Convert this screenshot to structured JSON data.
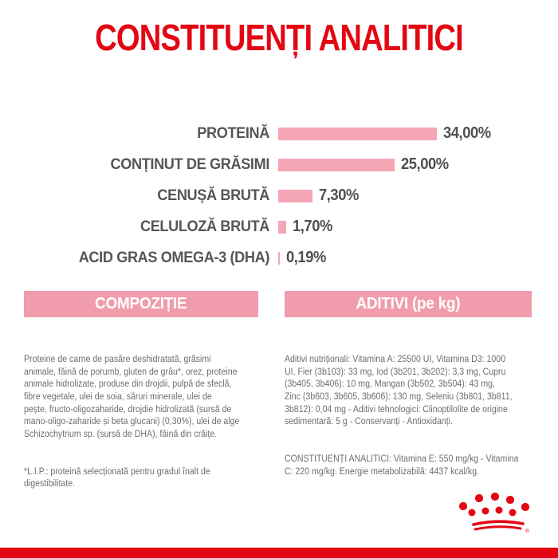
{
  "colors": {
    "brand_red": "#e30613",
    "bar_pink": "#f4a6b5",
    "header_pink": "#f19cac",
    "chart_label_gray": "#55565a",
    "body_text_gray": "#6d6e71",
    "background": "#ffffff"
  },
  "title": "CONSTITUENȚI ANALITICI",
  "chart_data": {
    "type": "bar",
    "orientation": "horizontal",
    "title": "CONSTITUENȚI ANALITICI",
    "categories": [
      "PROTEINĂ",
      "CONȚINUT DE GRĂSIMI",
      "CENUȘĂ BRUTĂ",
      "CELULOZĂ BRUTĂ",
      "ACID GRAS OMEGA-3 (DHA)"
    ],
    "values": [
      34.0,
      25.0,
      7.3,
      1.7,
      0.19
    ],
    "value_labels": [
      "34,00%",
      "25,00%",
      "7,30%",
      "1,70%",
      "0,19%"
    ],
    "unit": "%",
    "xlim": [
      0,
      34
    ],
    "grid": false,
    "legend": false,
    "bar_color": "#f4a6b5"
  },
  "composition": {
    "header": "COMPOZIȚIE",
    "body": "Proteine de carne de pasăre deshidratată, grăsimi\nanimale, făină de porumb, gluten de grâu*, orez, proteine\nanimale hidrolizate, produse din drojdii, pulpă de sfeclă,\nfibre vegetale, ulei de soia, săruri minerale, ulei de\npește, fructo-oligozaharide, drojdie hidrolizată (sursă de\nmano-oligo-zaharide și beta glucani) (0,30%), ulei de alge\nSchizochytrium sp. (sursă de DHA), făină din crăițe.",
    "note": "*L.I.P.: proteină selecționată pentru gradul înalt de\ndigestibilitate."
  },
  "additives": {
    "header": "ADITIVI (pe kg)",
    "body": "Aditivi nutriționali: Vitamina A: 25500 UI, Vitamina D3: 1000\nUI, Fier (3b103): 33 mg, Iod (3b201, 3b202): 3,3 mg, Cupru\n(3b405, 3b406): 10 mg, Mangan (3b502, 3b504): 43 mg,\nZinc (3b603, 3b605, 3b606): 130 mg, Seleniu (3b801, 3b811,\n3b812): 0,04 mg - Aditivi tehnologici: Clinoptilolite de origine\nsedimentară: 5 g - Conservanți - Antioxidanți.",
    "analytical": "CONSTITUENȚI ANALITICI: Vitamina E: 550 mg/kg - Vitamina\nC: 220 mg/kg. Energie metabolizabilă: 4437 kcal/kg."
  },
  "logo": {
    "name": "royal-canin-crown",
    "registered_mark": "®",
    "color": "#e30613"
  }
}
